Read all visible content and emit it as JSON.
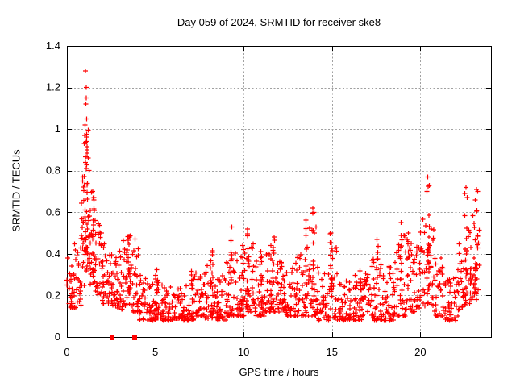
{
  "chart_data": {
    "type": "scatter",
    "title": "Day 059 of 2024, SRMTID for receiver ske8",
    "xlabel": "GPS time / hours",
    "ylabel": "SRMTID / TECUs",
    "xlim": [
      0,
      24
    ],
    "ylim": [
      0,
      1.4
    ],
    "xticks": [
      "0",
      "5",
      "10",
      "15",
      "20"
    ],
    "xtick_values": [
      0,
      5,
      10,
      15,
      20
    ],
    "yticks": [
      "0",
      "0.2",
      "0.4",
      "0.6",
      "0.8",
      "1",
      "1.2",
      "1.4"
    ],
    "ytick_values": [
      0,
      0.2,
      0.4,
      0.6,
      0.8,
      1,
      1.2,
      1.4
    ],
    "grid": true,
    "grid_style": "dashed",
    "grid_color": "#a0a0a0",
    "axis_color": "#000000",
    "marker": "plus",
    "marker_color": "#ff0000",
    "legend": "none",
    "scatter": {
      "seed": 2024059,
      "feature_points": [
        [
          0.05,
          0.38
        ],
        [
          1.05,
          1.28
        ],
        [
          1.09,
          1.2
        ],
        [
          1.1,
          1.15
        ],
        [
          1.07,
          1.12
        ],
        [
          1.12,
          1.05
        ],
        [
          1.03,
          1.02
        ],
        [
          1.0,
          0.97
        ],
        [
          0.97,
          0.93
        ],
        [
          1.14,
          0.9
        ],
        [
          1.2,
          0.86
        ],
        [
          1.25,
          0.8
        ],
        [
          0.9,
          0.75
        ],
        [
          1.45,
          0.7
        ],
        [
          1.52,
          0.66
        ],
        [
          20.42,
          0.77
        ],
        [
          20.5,
          0.73
        ],
        [
          20.38,
          0.7
        ],
        [
          22.58,
          0.72
        ],
        [
          22.52,
          0.69
        ],
        [
          22.65,
          0.67
        ],
        [
          23.18,
          0.71
        ],
        [
          23.25,
          0.7
        ],
        [
          23.1,
          0.66
        ],
        [
          13.92,
          0.62
        ],
        [
          13.98,
          0.6
        ],
        [
          18.92,
          0.55
        ],
        [
          10.22,
          0.52
        ],
        [
          9.32,
          0.53
        ],
        [
          14.95,
          0.5
        ],
        [
          19.32,
          0.5
        ],
        [
          11.72,
          0.48
        ],
        [
          17.55,
          0.47
        ]
      ],
      "base_bins": [
        [
          0.0,
          0.4,
          0.14,
          0.38,
          26,
          1.8
        ],
        [
          0.4,
          0.8,
          0.14,
          0.45,
          26,
          2.0
        ],
        [
          0.8,
          1.0,
          0.2,
          0.8,
          22,
          1.4
        ],
        [
          1.0,
          1.25,
          0.3,
          1.05,
          26,
          1.5
        ],
        [
          1.25,
          1.6,
          0.25,
          0.7,
          30,
          1.6
        ],
        [
          1.6,
          2.0,
          0.2,
          0.55,
          30,
          1.8
        ],
        [
          2.0,
          2.4,
          0.16,
          0.45,
          26,
          2.0
        ],
        [
          2.4,
          2.8,
          0.15,
          0.42,
          26,
          2.0
        ],
        [
          2.8,
          3.2,
          0.13,
          0.42,
          26,
          2.0
        ],
        [
          3.2,
          3.7,
          0.15,
          0.5,
          34,
          1.8
        ],
        [
          3.7,
          4.1,
          0.12,
          0.48,
          30,
          1.9
        ],
        [
          4.1,
          4.6,
          0.08,
          0.3,
          28,
          2.0
        ],
        [
          4.6,
          5.0,
          0.08,
          0.26,
          26,
          2.2
        ],
        [
          5.0,
          5.4,
          0.09,
          0.3,
          28,
          2.2
        ],
        [
          5.4,
          6.0,
          0.08,
          0.24,
          36,
          2.2
        ],
        [
          6.0,
          6.6,
          0.09,
          0.26,
          36,
          2.2
        ],
        [
          6.6,
          7.2,
          0.08,
          0.3,
          36,
          2.2
        ],
        [
          7.2,
          7.8,
          0.1,
          0.32,
          36,
          2.2
        ],
        [
          7.8,
          8.4,
          0.09,
          0.35,
          36,
          2.2
        ],
        [
          8.4,
          9.0,
          0.08,
          0.3,
          36,
          2.2
        ],
        [
          9.0,
          9.6,
          0.1,
          0.42,
          36,
          2.2
        ],
        [
          9.6,
          10.1,
          0.1,
          0.45,
          32,
          2.0
        ],
        [
          10.1,
          10.6,
          0.12,
          0.5,
          34,
          2.0
        ],
        [
          10.6,
          11.2,
          0.1,
          0.38,
          36,
          2.2
        ],
        [
          11.2,
          11.8,
          0.12,
          0.45,
          36,
          2.2
        ],
        [
          11.8,
          12.4,
          0.12,
          0.42,
          36,
          2.2
        ],
        [
          12.4,
          13.0,
          0.1,
          0.36,
          36,
          2.2
        ],
        [
          13.0,
          13.6,
          0.1,
          0.42,
          34,
          2.2
        ],
        [
          13.6,
          14.2,
          0.1,
          0.55,
          34,
          1.8
        ],
        [
          14.2,
          14.8,
          0.08,
          0.35,
          32,
          2.2
        ],
        [
          14.8,
          15.3,
          0.09,
          0.45,
          30,
          2.0
        ],
        [
          15.3,
          16.0,
          0.08,
          0.28,
          40,
          2.2
        ],
        [
          16.0,
          16.7,
          0.08,
          0.3,
          40,
          2.2
        ],
        [
          16.7,
          17.3,
          0.1,
          0.38,
          36,
          2.2
        ],
        [
          17.3,
          17.9,
          0.08,
          0.45,
          36,
          2.2
        ],
        [
          17.9,
          18.5,
          0.08,
          0.38,
          36,
          2.2
        ],
        [
          18.5,
          19.2,
          0.1,
          0.5,
          38,
          2.2
        ],
        [
          19.2,
          19.8,
          0.12,
          0.45,
          34,
          2.0
        ],
        [
          19.8,
          20.3,
          0.14,
          0.58,
          32,
          1.8
        ],
        [
          20.3,
          20.8,
          0.15,
          0.68,
          32,
          1.6
        ],
        [
          20.8,
          21.4,
          0.1,
          0.38,
          34,
          2.0
        ],
        [
          21.4,
          22.0,
          0.08,
          0.3,
          34,
          2.2
        ],
        [
          22.0,
          22.5,
          0.1,
          0.45,
          30,
          2.0
        ],
        [
          22.5,
          23.0,
          0.15,
          0.62,
          30,
          1.5
        ],
        [
          23.0,
          23.35,
          0.18,
          0.55,
          24,
          1.5
        ]
      ],
      "spikes": [
        [
          1.1,
          0.06,
          0.4,
          1.0,
          14
        ],
        [
          1.5,
          0.05,
          0.3,
          0.68,
          10
        ],
        [
          3.5,
          0.06,
          0.2,
          0.52,
          10
        ],
        [
          5.1,
          0.04,
          0.12,
          0.38,
          8
        ],
        [
          7.1,
          0.05,
          0.12,
          0.34,
          7
        ],
        [
          8.2,
          0.05,
          0.12,
          0.42,
          8
        ],
        [
          9.3,
          0.04,
          0.15,
          0.52,
          8
        ],
        [
          9.9,
          0.05,
          0.15,
          0.5,
          8
        ],
        [
          10.25,
          0.05,
          0.15,
          0.52,
          9
        ],
        [
          11.0,
          0.04,
          0.12,
          0.44,
          7
        ],
        [
          11.7,
          0.05,
          0.15,
          0.48,
          8
        ],
        [
          12.1,
          0.04,
          0.12,
          0.45,
          7
        ],
        [
          13.55,
          0.05,
          0.15,
          0.58,
          9
        ],
        [
          13.95,
          0.05,
          0.15,
          0.62,
          10
        ],
        [
          14.95,
          0.05,
          0.12,
          0.5,
          9
        ],
        [
          16.6,
          0.04,
          0.1,
          0.33,
          7
        ],
        [
          17.55,
          0.05,
          0.12,
          0.47,
          8
        ],
        [
          18.9,
          0.05,
          0.12,
          0.52,
          9
        ],
        [
          19.3,
          0.04,
          0.12,
          0.5,
          8
        ],
        [
          20.45,
          0.06,
          0.2,
          0.75,
          12
        ],
        [
          22.6,
          0.05,
          0.2,
          0.68,
          10
        ],
        [
          23.15,
          0.06,
          0.2,
          0.66,
          10
        ]
      ],
      "zero_markers": {
        "shape": "filled-square",
        "color": "#ff0000",
        "points": [
          [
            2.57,
            0
          ],
          [
            3.83,
            0
          ]
        ]
      }
    }
  }
}
